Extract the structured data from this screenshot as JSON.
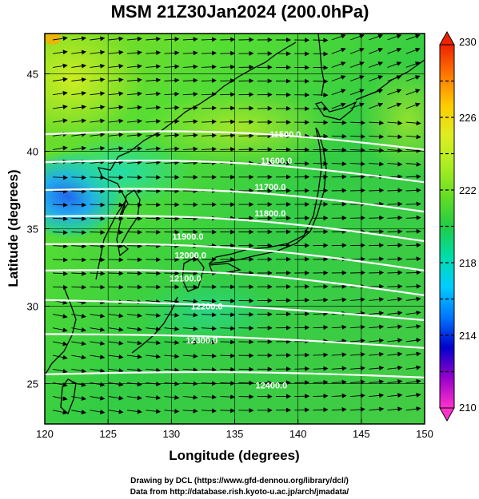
{
  "title": "MSM 21Z30Jan2024 (200.0hPa)",
  "chart_data": {
    "type": "contour-map",
    "title": "MSM 21Z30Jan2024 (200.0hPa)",
    "xlabel": "Longitude (degrees)",
    "ylabel": "Latitude  (degrees)",
    "xlim": [
      120,
      150
    ],
    "ylim": [
      22.4,
      47.6
    ],
    "xticks": [
      120,
      125,
      130,
      135,
      140,
      145,
      150
    ],
    "yticks": [
      25,
      30,
      35,
      40,
      45
    ],
    "colorbar": {
      "min": 210,
      "max": 230,
      "ticks": [
        210,
        214,
        218,
        222,
        226,
        230
      ],
      "colors": [
        "#ff33cc",
        "#9900cc",
        "#0000cc",
        "#0077ff",
        "#00ccff",
        "#00ddaa",
        "#22cc44",
        "#66dd22",
        "#aaee22",
        "#ddee22",
        "#ffcc00",
        "#ff7700",
        "#ee2200"
      ]
    },
    "contours": [
      {
        "label": "11500.0",
        "lat_at_120": 41.1,
        "lat_at_150": 40.1
      },
      {
        "label": "11600.0",
        "lat_at_120": 39.3,
        "lat_at_150": 38.0
      },
      {
        "label": "11700.0",
        "lat_at_120": 37.5,
        "lat_at_150": 36.1
      },
      {
        "label": "11800.0",
        "lat_at_120": 35.8,
        "lat_at_150": 34.2
      },
      {
        "label": "11900.0",
        "lat_at_120": 34.0,
        "lat_at_150": 32.3
      },
      {
        "label": "12000.0",
        "lat_at_120": 32.3,
        "lat_at_150": 30.7
      },
      {
        "label": "12100.0",
        "lat_at_120": 30.4,
        "lat_at_150": 29.1
      },
      {
        "label": "12200.0",
        "lat_at_120": 28.2,
        "lat_at_150": 27.3
      },
      {
        "label": "12300.0",
        "lat_at_120": 25.6,
        "lat_at_150": 25.4
      }
    ],
    "contour_labels": [
      {
        "text": "11500.0",
        "lon": 139.0,
        "lat": 41.1
      },
      {
        "text": "11600.0",
        "lon": 138.3,
        "lat": 39.4
      },
      {
        "text": "11700.0",
        "lon": 137.8,
        "lat": 37.7
      },
      {
        "text": "11800.0",
        "lon": 137.8,
        "lat": 36.0
      },
      {
        "text": "11900.0",
        "lon": 131.3,
        "lat": 34.5
      },
      {
        "text": "12000.0",
        "lon": 131.5,
        "lat": 33.3
      },
      {
        "text": "12100.0",
        "lon": 131.1,
        "lat": 31.8
      },
      {
        "text": "12200.0",
        "lon": 132.8,
        "lat": 30.0
      },
      {
        "text": "12300.0",
        "lon": 132.4,
        "lat": 27.8
      },
      {
        "text": "12400.0",
        "lon": 137.9,
        "lat": 24.9
      }
    ]
  },
  "credits": {
    "line1": "Drawing by DCL (https://www.gfd-dennou.org/library/dcl/)",
    "line2": "Data from http://database.rish.kyoto-u.ac.jp/arch/jmadata/"
  }
}
